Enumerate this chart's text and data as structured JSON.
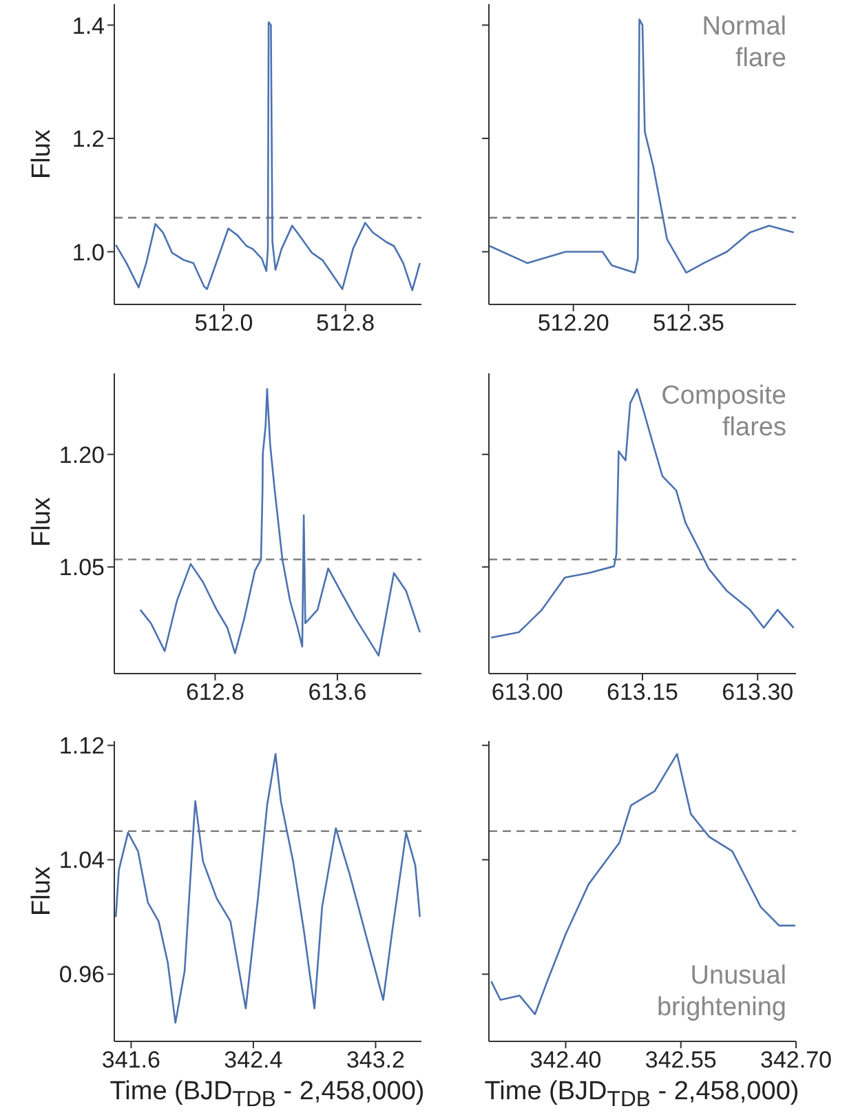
{
  "chart_data": [
    {
      "type": "line",
      "ylabel": "Flux",
      "color": "#4c72b0",
      "xlim": [
        511.28,
        513.3
      ],
      "xticks": [
        {
          "value": 512.0,
          "label": "512.0"
        },
        512.8
      ],
      "ylim": [
        0.907,
        1.437
      ],
      "yticks": [
        {
          "value": 1.0,
          "label": "1.0"
        },
        1.2,
        1.4
      ],
      "ref_lines": [
        {
          "axis": "y",
          "value": 1.06,
          "color": "#808080",
          "line_style": "dashed"
        }
      ],
      "x": [
        511.29,
        511.36,
        511.44,
        511.49,
        511.55,
        511.6,
        511.66,
        511.74,
        511.8,
        511.87,
        511.89,
        511.95,
        512.03,
        512.09,
        512.15,
        512.19,
        512.25,
        512.28,
        512.29,
        512.295,
        512.31,
        512.32,
        512.34,
        512.38,
        512.45,
        512.51,
        512.58,
        512.65,
        512.78,
        512.85,
        512.93,
        512.98,
        513.07,
        513.12,
        513.18,
        513.24,
        513.29
      ],
      "values": [
        1.012,
        0.98,
        0.937,
        0.98,
        1.049,
        1.034,
        0.998,
        0.985,
        0.98,
        0.939,
        0.934,
        0.98,
        1.041,
        1.029,
        1.01,
        1.005,
        0.988,
        0.966,
        1.005,
        1.405,
        1.4,
        1.017,
        0.968,
        1.005,
        1.046,
        1.024,
        0.998,
        0.985,
        0.934,
        1.005,
        1.051,
        1.034,
        1.017,
        1.01,
        0.98,
        0.932,
        0.98
      ]
    },
    {
      "type": "line",
      "annotations": [
        "Normal flare"
      ],
      "color": "#4c72b0",
      "xlim": [
        512.09,
        512.49
      ],
      "xticks": [
        {
          "value": 512.2,
          "label": "512.20"
        },
        512.35
      ],
      "ylim": [
        0.907,
        1.437
      ],
      "yticks": [
        1.0,
        1.2,
        1.4
      ],
      "tick_labels": "x",
      "ref_lines": [
        {
          "axis": "y",
          "value": 1.06,
          "color": "#808080",
          "line_style": "dashed"
        }
      ],
      "x": [
        512.091,
        512.14,
        512.19,
        512.238,
        512.25,
        512.28,
        512.284,
        512.286,
        512.29,
        512.293,
        512.304,
        512.316,
        512.322,
        512.347,
        512.37,
        512.4,
        512.43,
        512.455,
        512.487
      ],
      "values": [
        1.01,
        0.98,
        1.0,
        1.0,
        0.976,
        0.963,
        0.988,
        1.41,
        1.4,
        1.212,
        1.151,
        1.066,
        1.022,
        0.963,
        0.98,
        1.0,
        1.034,
        1.046,
        1.034
      ]
    },
    {
      "type": "line",
      "ylabel": "Flux",
      "color": "#4c72b0",
      "xlim": [
        612.14,
        614.15
      ],
      "xticks": [
        612.8,
        613.6
      ],
      "ylim": [
        0.908,
        1.308
      ],
      "yticks": [
        1.05,
        {
          "value": 1.2,
          "label": "1.20"
        }
      ],
      "ref_lines": [
        {
          "axis": "y",
          "value": 1.06,
          "color": "#808080",
          "line_style": "dashed"
        }
      ],
      "x": [
        612.31,
        612.38,
        612.47,
        612.55,
        612.64,
        612.72,
        612.81,
        612.88,
        612.93,
        612.99,
        613.06,
        613.1,
        613.11,
        613.112,
        613.13,
        613.14,
        613.16,
        613.19,
        613.24,
        613.29,
        613.34,
        613.37,
        613.38,
        613.39,
        613.47,
        613.54,
        613.62,
        613.72,
        613.87,
        613.97,
        614.05,
        614.14
      ],
      "values": [
        0.993,
        0.975,
        0.938,
        1.005,
        1.054,
        1.03,
        0.993,
        0.969,
        0.935,
        0.981,
        1.045,
        1.06,
        1.152,
        1.201,
        1.238,
        1.287,
        1.213,
        1.152,
        1.06,
        1.005,
        0.969,
        0.944,
        1.119,
        0.975,
        0.993,
        1.048,
        1.018,
        0.981,
        0.932,
        1.042,
        1.018,
        0.963
      ]
    },
    {
      "type": "line",
      "annotations": [
        "Composite flares"
      ],
      "color": "#4c72b0",
      "xlim": [
        612.95,
        613.35
      ],
      "xticks": [
        {
          "value": 613.0,
          "label": "613.00"
        },
        613.15,
        {
          "value": 613.3,
          "label": "613.30"
        }
      ],
      "ylim": [
        0.908,
        1.308
      ],
      "yticks": [
        1.05,
        1.2
      ],
      "tick_labels": "x",
      "ref_lines": [
        {
          "axis": "y",
          "value": 1.06,
          "color": "#808080",
          "line_style": "dashed"
        }
      ],
      "x": [
        612.953,
        612.989,
        613.019,
        613.049,
        613.08,
        613.113,
        613.116,
        613.119,
        613.128,
        613.134,
        613.143,
        613.152,
        613.164,
        613.176,
        613.194,
        613.206,
        613.224,
        613.236,
        613.26,
        613.29,
        613.308,
        613.326,
        613.347
      ],
      "values": [
        0.956,
        0.963,
        0.993,
        1.036,
        1.042,
        1.051,
        1.067,
        1.204,
        1.192,
        1.268,
        1.287,
        1.256,
        1.213,
        1.171,
        1.152,
        1.109,
        1.073,
        1.048,
        1.018,
        0.993,
        0.969,
        0.993,
        0.969
      ]
    },
    {
      "type": "line",
      "ylabel": "Flux",
      "xlabel": "Time (BJD$_{TDB}$ - 2,458,000)",
      "color": "#4c72b0",
      "xlim": [
        341.49,
        343.5
      ],
      "xticks": [
        341.6,
        342.4,
        343.2
      ],
      "ylim": [
        0.913,
        1.123
      ],
      "yticks": [
        0.96,
        1.04,
        1.12
      ],
      "ref_lines": [
        {
          "axis": "y",
          "value": 1.06,
          "color": "#808080",
          "line_style": "dashed"
        }
      ],
      "x": [
        341.5,
        341.52,
        341.58,
        341.645,
        341.71,
        341.78,
        341.84,
        341.89,
        341.95,
        342.01,
        342.02,
        342.07,
        342.16,
        342.25,
        342.35,
        342.43,
        342.49,
        342.545,
        342.58,
        342.66,
        342.73,
        342.8,
        342.85,
        342.94,
        343.03,
        343.12,
        343.25,
        343.31,
        343.4,
        343.46,
        343.49
      ],
      "values": [
        1.0,
        1.033,
        1.059,
        1.046,
        1.01,
        0.997,
        0.968,
        0.926,
        0.962,
        1.065,
        1.081,
        1.039,
        1.013,
        0.997,
        0.936,
        1.013,
        1.078,
        1.114,
        1.081,
        1.039,
        0.991,
        0.936,
        1.007,
        1.062,
        1.03,
        0.994,
        0.942,
        0.991,
        1.059,
        1.036,
        1.0
      ]
    },
    {
      "type": "line",
      "xlabel": "Time (BJD$_{TDB}$ - 2,458,000)",
      "annotations": [
        "Unusual brightening"
      ],
      "color": "#4c72b0",
      "xlim": [
        342.3,
        342.7
      ],
      "xticks": [
        {
          "value": 342.4,
          "label": "342.40"
        },
        342.55,
        {
          "value": 342.7,
          "label": "342.70"
        }
      ],
      "ylim": [
        0.913,
        1.123
      ],
      "yticks": [
        0.96,
        1.04,
        1.12
      ],
      "tick_labels": "x",
      "ref_lines": [
        {
          "axis": "y",
          "value": 1.06,
          "color": "#808080",
          "line_style": "dashed"
        }
      ],
      "x": [
        342.303,
        342.315,
        342.34,
        342.36,
        342.376,
        342.4,
        342.43,
        342.47,
        342.485,
        342.516,
        342.545,
        342.563,
        342.587,
        342.617,
        342.654,
        342.678,
        342.699
      ],
      "values": [
        0.955,
        0.942,
        0.945,
        0.932,
        0.955,
        0.988,
        1.023,
        1.052,
        1.078,
        1.088,
        1.114,
        1.072,
        1.056,
        1.046,
        1.007,
        0.994,
        0.994
      ]
    }
  ]
}
